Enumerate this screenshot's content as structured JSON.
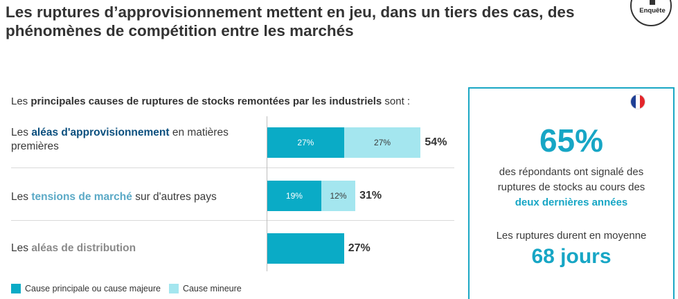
{
  "header": {
    "title": "Les ruptures d’approvisionnement mettent en jeu, dans un tiers des cas, des phénomènes de compétition entre les marchés",
    "badge": "Enquête"
  },
  "intro": {
    "prefix": "Les ",
    "bold": "principales causes de ruptures de stocks remontées par les industriels",
    "suffix": " sont :"
  },
  "rows": [
    {
      "prefix": "Les ",
      "keyword": "aléas d'approvisionnement",
      "suffix": " en matières premières"
    },
    {
      "prefix": "Les ",
      "keyword": "tensions de marché",
      "suffix": " sur d'autres pays"
    },
    {
      "prefix": "Les ",
      "keyword": "aléas de distribution",
      "suffix": ""
    }
  ],
  "chart_data": {
    "type": "bar",
    "stacked": true,
    "orientation": "horizontal",
    "categories": [
      "aléas d'approvisionnement",
      "tensions de marché",
      "aléas de distribution"
    ],
    "series": [
      {
        "name": "Cause principale ou cause majeure",
        "values": [
          27,
          19,
          27
        ],
        "labels": [
          "27%",
          "19%",
          ""
        ],
        "color": "#0aabc6"
      },
      {
        "name": "Cause mineure",
        "values": [
          27,
          12,
          0
        ],
        "labels": [
          "27%",
          "12%",
          ""
        ],
        "color": "#a4e6ef"
      }
    ],
    "totals": [
      "54%",
      "31%",
      "27%"
    ],
    "legend": "bottom-left"
  },
  "panel": {
    "big_value": "65%",
    "text_lines": [
      "des répondants ont signalé des",
      "ruptures de stocks au cours des"
    ],
    "highlight": "deux dernières années",
    "duration_text": "Les ruptures durent en moyenne",
    "duration_value": "68 jours",
    "flag_colors": [
      "#1f3f95",
      "#ffffff",
      "#e3262b"
    ]
  }
}
